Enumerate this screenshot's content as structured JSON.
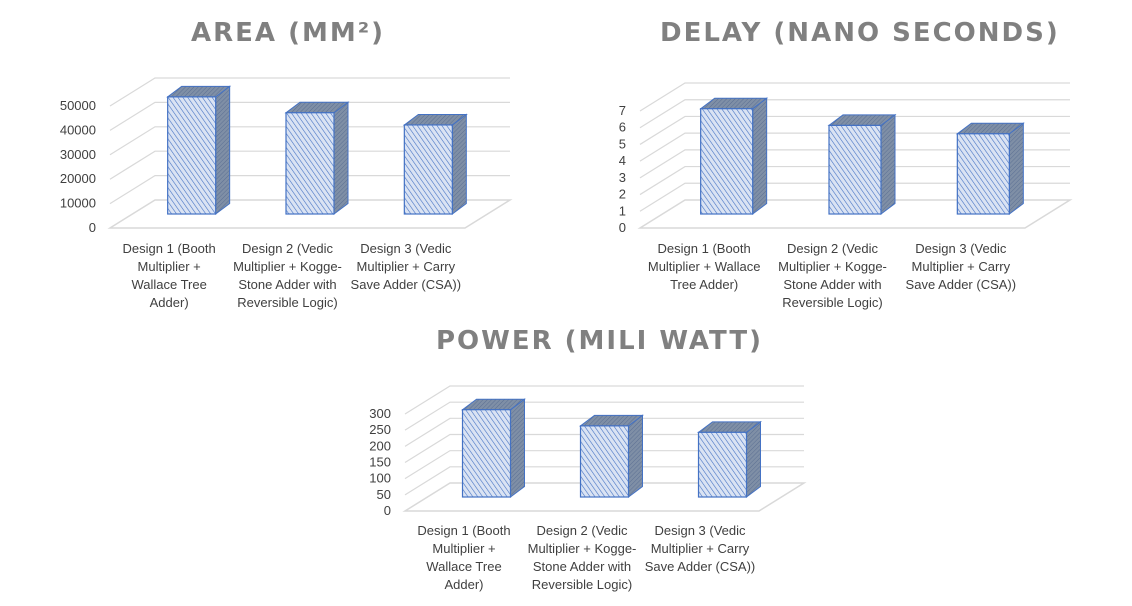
{
  "chart_data": [
    {
      "type": "bar",
      "title": "AREA (MM²)",
      "categories": [
        "Design 1  (Booth Multiplier + Wallace Tree Adder)",
        "Design 2 (Vedic Multiplier + Kogge-Stone Adder with Reversible Logic)",
        "Design 3 (Vedic Multiplier + Carry Save Adder (CSA))"
      ],
      "category_lines": [
        [
          "Design 1  (Booth",
          "Multiplier +",
          "Wallace Tree",
          "Adder)"
        ],
        [
          "Design 2 (Vedic",
          "Multiplier + Kogge-",
          "Stone Adder with",
          "Reversible Logic)"
        ],
        [
          "Design 3 (Vedic",
          "Multiplier + Carry",
          "Save Adder (CSA))"
        ]
      ],
      "values": [
        48000,
        41500,
        36500
      ],
      "yticks": [
        0,
        10000,
        20000,
        30000,
        40000,
        50000
      ],
      "ylim": [
        0,
        50000
      ],
      "xlabel": "",
      "ylabel": "",
      "grid": true,
      "style": "3d-column"
    },
    {
      "type": "bar",
      "title": "DELAY (NANO SECONDS)",
      "categories": [
        "Design 1  (Booth Multiplier + Wallace Tree Adder)",
        "Design 2 (Vedic Multiplier + Kogge-Stone Adder with Reversible Logic)",
        "Design 3 (Vedic Multiplier + Carry Save Adder (CSA))"
      ],
      "category_lines": [
        [
          "Design 1  (Booth",
          "Multiplier + Wallace",
          "Tree Adder)"
        ],
        [
          "Design 2 (Vedic",
          "Multiplier + Kogge-",
          "Stone Adder with",
          "Reversible Logic)"
        ],
        [
          "Design 3 (Vedic",
          "Multiplier + Carry",
          "Save Adder (CSA))"
        ]
      ],
      "values": [
        6.3,
        5.3,
        4.8
      ],
      "yticks": [
        0,
        1,
        2,
        3,
        4,
        5,
        6,
        7
      ],
      "ylim": [
        0,
        7
      ],
      "xlabel": "",
      "ylabel": "",
      "grid": true,
      "style": "3d-column"
    },
    {
      "type": "bar",
      "title": "POWER (MILI WATT)",
      "categories": [
        "Design 1  (Booth Multiplier + Wallace Tree Adder)",
        "Design 2 (Vedic Multiplier + Kogge-Stone Adder with Reversible Logic)",
        "Design 3 (Vedic Multiplier + Carry Save Adder (CSA))"
      ],
      "category_lines": [
        [
          "Design 1  (Booth",
          "Multiplier +",
          "Wallace Tree",
          "Adder)"
        ],
        [
          "Design 2 (Vedic",
          "Multiplier + Kogge-",
          "Stone Adder with",
          "Reversible Logic)"
        ],
        [
          "Design 3 (Vedic",
          "Multiplier + Carry",
          "Save Adder (CSA))"
        ]
      ],
      "values": [
        270,
        220,
        200
      ],
      "yticks": [
        0,
        50,
        100,
        150,
        200,
        250,
        300
      ],
      "ylim": [
        0,
        300
      ],
      "xlabel": "",
      "ylabel": "",
      "grid": true,
      "style": "3d-column"
    }
  ],
  "colors": {
    "bar_front_fill": "#dae3f3",
    "bar_hatch": "#4472c4",
    "bar_side": "#7f8fa6",
    "bar_outline": "#4472c4",
    "grid": "#d9d9d9",
    "title": "#808080",
    "text": "#404040"
  }
}
